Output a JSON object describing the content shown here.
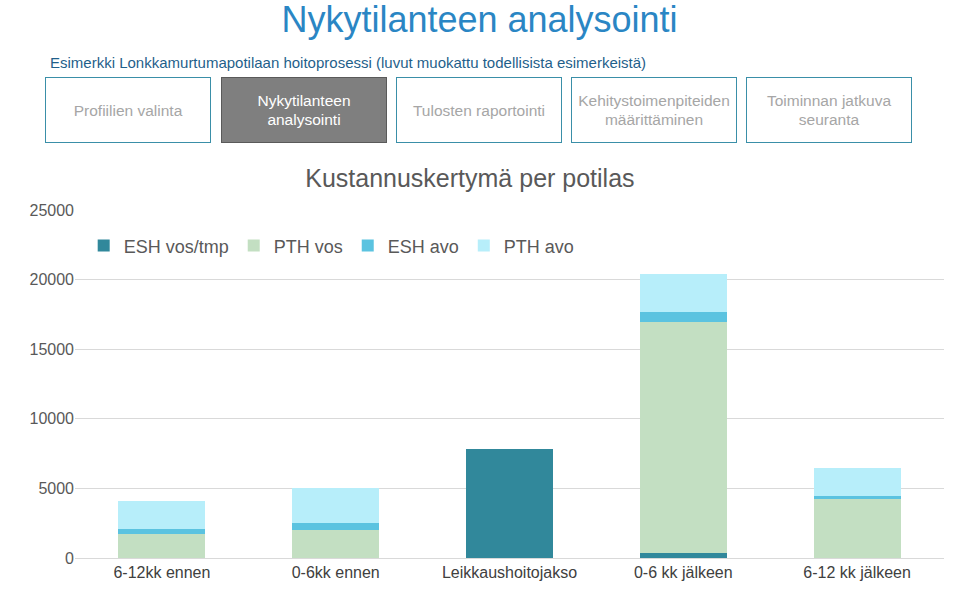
{
  "slide": {
    "title": "Nykytilanteen analysointi",
    "subtitle": "Esimerkki Lonkkamurtumapotilaan hoitoprosessi (luvut muokattu todellisista esimerkeistä)",
    "steps": [
      {
        "label": "Profiilien valinta",
        "active": false
      },
      {
        "label": "Nykytilanteen analysointi",
        "active": true
      },
      {
        "label": "Tulosten raportointi",
        "active": false
      },
      {
        "label": "Kehitystoimenpiteiden määrittäminen",
        "active": false
      },
      {
        "label": "Toiminnan jatkuva seuranta",
        "active": false
      }
    ]
  },
  "chart_data": {
    "type": "bar",
    "title": "Kustannuskertymä per potilas",
    "stacked": true,
    "grid": true,
    "legend": "top-left",
    "categories": [
      "6-12kk ennen",
      "0-6kk ennen",
      "Leikkaushoitojakso",
      "0-6 kk jälkeen",
      "6-12 kk jälkeen"
    ],
    "series": [
      {
        "name": "ESH vos/tmp",
        "color": "#31889b",
        "values": [
          0,
          0,
          7850,
          350,
          0
        ]
      },
      {
        "name": "PTH vos",
        "color": "#c3dfc2",
        "values": [
          1750,
          2000,
          0,
          16600,
          4250
        ]
      },
      {
        "name": "ESH avo",
        "color": "#5bc3e0",
        "values": [
          350,
          550,
          0,
          750,
          200
        ]
      },
      {
        "name": "PTH avo",
        "color": "#b7eefa",
        "values": [
          2000,
          2500,
          0,
          2700,
          2000
        ]
      }
    ],
    "ylim": [
      0,
      25000
    ],
    "yticks": [
      0,
      5000,
      10000,
      15000,
      20000,
      25000
    ]
  }
}
